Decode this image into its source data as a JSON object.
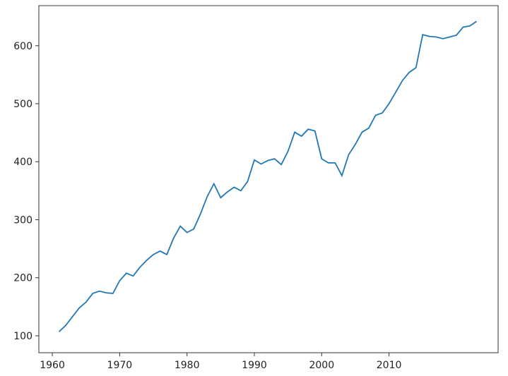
{
  "chart_data": {
    "type": "line",
    "x": [
      1961,
      1962,
      1963,
      1964,
      1965,
      1966,
      1967,
      1968,
      1969,
      1970,
      1971,
      1972,
      1973,
      1974,
      1975,
      1976,
      1977,
      1978,
      1979,
      1980,
      1981,
      1982,
      1983,
      1984,
      1985,
      1986,
      1987,
      1988,
      1989,
      1990,
      1991,
      1992,
      1993,
      1994,
      1995,
      1996,
      1997,
      1998,
      1999,
      2000,
      2001,
      2002,
      2003,
      2004,
      2005,
      2006,
      2007,
      2008,
      2009,
      2010,
      2011,
      2012,
      2013,
      2014,
      2015,
      2016,
      2017,
      2018,
      2019,
      2020,
      2021,
      2022,
      2023
    ],
    "values": [
      107,
      118,
      133,
      148,
      158,
      173,
      177,
      174,
      173,
      195,
      208,
      203,
      218,
      230,
      240,
      246,
      240,
      268,
      289,
      278,
      284,
      310,
      340,
      362,
      338,
      348,
      356,
      350,
      366,
      403,
      396,
      402,
      405,
      395,
      418,
      451,
      444,
      456,
      453,
      405,
      398,
      398,
      376,
      412,
      430,
      451,
      458,
      480,
      484,
      500,
      520,
      540,
      554,
      562,
      619,
      616,
      615,
      612,
      615,
      618,
      632,
      634,
      642
    ],
    "color": "#1f77b4",
    "xlim": [
      1958,
      2026.2
    ],
    "xticks": [
      1960,
      1970,
      1980,
      1990,
      2000,
      2010
    ],
    "ylim": [
      70.8,
      669
    ],
    "yticks": [
      100,
      200,
      300,
      400,
      500,
      600
    ]
  }
}
